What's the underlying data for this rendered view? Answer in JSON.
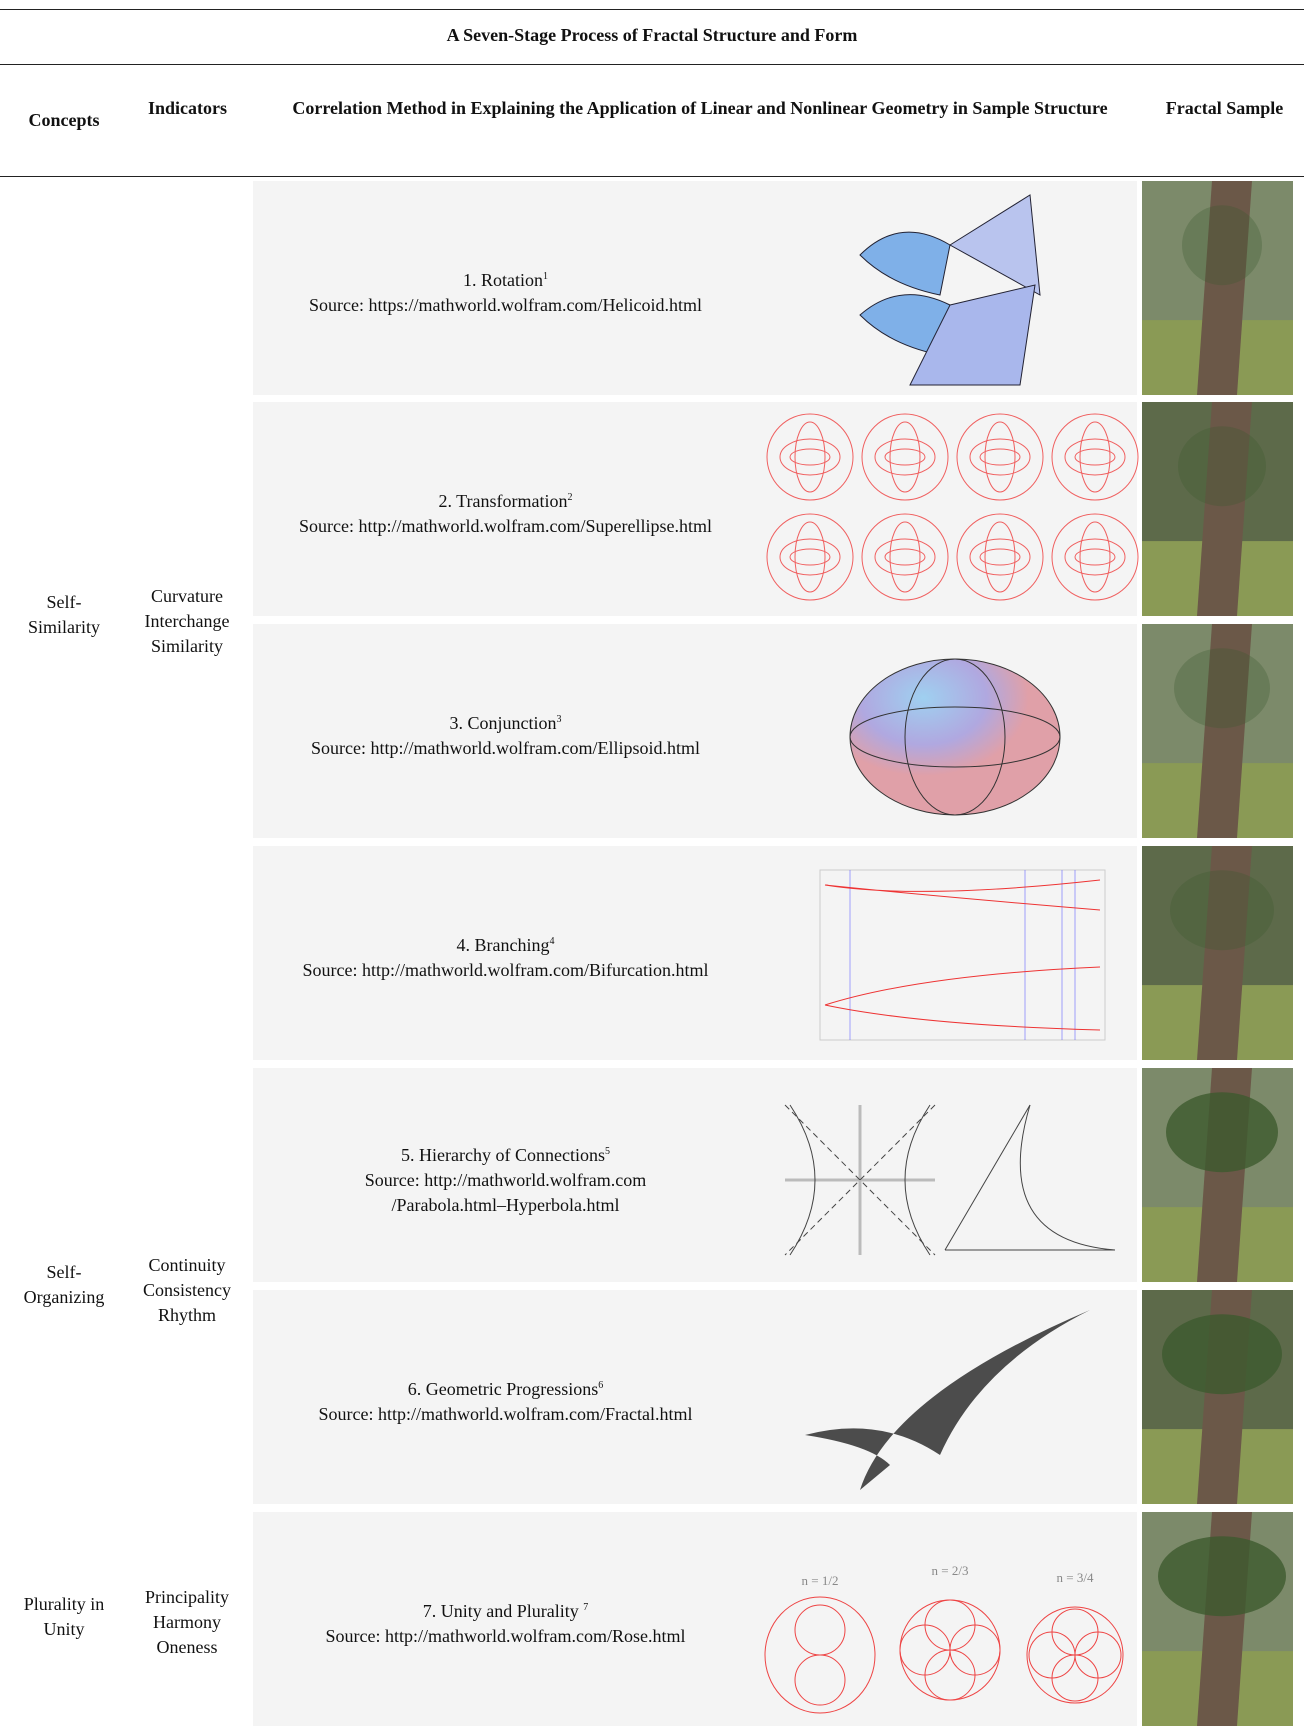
{
  "title": "A Seven-Stage Process of Fractal Structure and Form",
  "headers": [
    "Concepts",
    "Indicators",
    "Correlation Method in Explaining the Application of Linear and Nonlinear Geometry in Sample Structure",
    "Fractal Sample"
  ],
  "groups": [
    {
      "concept": [
        "Self-",
        "Similarity"
      ],
      "indicators": [
        "Curvature",
        "Interchange",
        "Similarity"
      ]
    },
    {
      "concept": [
        "Self-",
        "Organizing"
      ],
      "indicators": [
        "Continuity",
        "Consistency",
        "Rhythm"
      ]
    },
    {
      "concept": [
        "Plurality in",
        "Unity"
      ],
      "indicators": [
        "Principality",
        "Harmony",
        "Oneness"
      ]
    }
  ],
  "rows": [
    {
      "method": "1. Rotation",
      "note": "1",
      "source": [
        "Source: https://mathworld.wolfram.com/Helicoid.html"
      ]
    },
    {
      "method": "2. Transformation",
      "note": "2",
      "source": [
        "Source: http://mathworld.wolfram.com/Superellipse.html"
      ]
    },
    {
      "method": "3. Conjunction",
      "note": "3",
      "source": [
        "Source: http://mathworld.wolfram.com/Ellipsoid.html"
      ]
    },
    {
      "method": "4. Branching",
      "note": "4",
      "source": [
        "Source: http://mathworld.wolfram.com/Bifurcation.html"
      ]
    },
    {
      "method": "5. Hierarchy of Connections",
      "note": "5",
      "source": [
        "Source: http://mathworld.wolfram.com",
        "/Parabola.html–Hyperbola.html"
      ]
    },
    {
      "method": "6. Geometric Progressions",
      "note": "6",
      "source": [
        "Source: http://mathworld.wolfram.com/Fractal.html"
      ]
    },
    {
      "method": "7. Unity and Plurality ",
      "note": "7",
      "source": [
        "Source: http://mathworld.wolfram.com/Rose.html"
      ]
    }
  ],
  "rose_labels": [
    "n = 1/2",
    "n = 2/3",
    "n = 3/4"
  ]
}
